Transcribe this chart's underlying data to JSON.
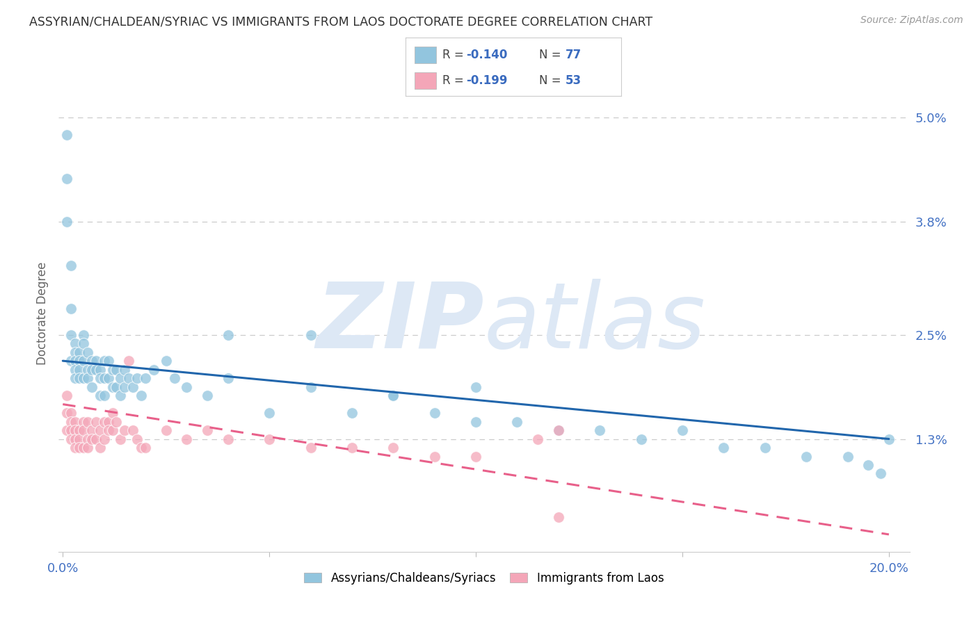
{
  "title": "ASSYRIAN/CHALDEAN/SYRIAC VS IMMIGRANTS FROM LAOS DOCTORATE DEGREE CORRELATION CHART",
  "source": "Source: ZipAtlas.com",
  "ylabel": "Doctorate Degree",
  "yaxis_ticks": [
    "5.0%",
    "3.8%",
    "2.5%",
    "1.3%"
  ],
  "yaxis_vals": [
    0.05,
    0.038,
    0.025,
    0.013
  ],
  "legend_label1": "Assyrians/Chaldeans/Syriacs",
  "legend_label2": "Immigrants from Laos",
  "blue_color": "#92c5de",
  "pink_color": "#f4a6b8",
  "blue_line_color": "#2166ac",
  "pink_line_color": "#e8608a",
  "blue_scatter_x": [
    0.001,
    0.001,
    0.001,
    0.002,
    0.002,
    0.002,
    0.002,
    0.003,
    0.003,
    0.003,
    0.003,
    0.003,
    0.004,
    0.004,
    0.004,
    0.004,
    0.005,
    0.005,
    0.005,
    0.005,
    0.006,
    0.006,
    0.006,
    0.007,
    0.007,
    0.007,
    0.008,
    0.008,
    0.009,
    0.009,
    0.009,
    0.01,
    0.01,
    0.01,
    0.011,
    0.011,
    0.012,
    0.012,
    0.013,
    0.013,
    0.014,
    0.014,
    0.015,
    0.015,
    0.016,
    0.017,
    0.018,
    0.019,
    0.02,
    0.022,
    0.025,
    0.027,
    0.03,
    0.035,
    0.04,
    0.05,
    0.06,
    0.07,
    0.08,
    0.09,
    0.1,
    0.11,
    0.12,
    0.13,
    0.14,
    0.15,
    0.16,
    0.17,
    0.18,
    0.19,
    0.195,
    0.198,
    0.2,
    0.1,
    0.08,
    0.06,
    0.04
  ],
  "blue_scatter_y": [
    0.048,
    0.043,
    0.038,
    0.033,
    0.028,
    0.025,
    0.022,
    0.024,
    0.023,
    0.022,
    0.021,
    0.02,
    0.023,
    0.022,
    0.021,
    0.02,
    0.025,
    0.024,
    0.022,
    0.02,
    0.023,
    0.021,
    0.02,
    0.022,
    0.021,
    0.019,
    0.022,
    0.021,
    0.021,
    0.02,
    0.018,
    0.022,
    0.02,
    0.018,
    0.022,
    0.02,
    0.021,
    0.019,
    0.021,
    0.019,
    0.02,
    0.018,
    0.021,
    0.019,
    0.02,
    0.019,
    0.02,
    0.018,
    0.02,
    0.021,
    0.022,
    0.02,
    0.019,
    0.018,
    0.02,
    0.016,
    0.019,
    0.016,
    0.018,
    0.016,
    0.015,
    0.015,
    0.014,
    0.014,
    0.013,
    0.014,
    0.012,
    0.012,
    0.011,
    0.011,
    0.01,
    0.009,
    0.013,
    0.019,
    0.018,
    0.025,
    0.025
  ],
  "pink_scatter_x": [
    0.001,
    0.001,
    0.001,
    0.002,
    0.002,
    0.002,
    0.002,
    0.003,
    0.003,
    0.003,
    0.003,
    0.004,
    0.004,
    0.004,
    0.005,
    0.005,
    0.005,
    0.006,
    0.006,
    0.006,
    0.007,
    0.007,
    0.008,
    0.008,
    0.009,
    0.009,
    0.01,
    0.01,
    0.011,
    0.011,
    0.012,
    0.012,
    0.013,
    0.014,
    0.015,
    0.016,
    0.017,
    0.018,
    0.019,
    0.02,
    0.025,
    0.03,
    0.035,
    0.04,
    0.05,
    0.06,
    0.07,
    0.08,
    0.09,
    0.1,
    0.115,
    0.12,
    0.12
  ],
  "pink_scatter_y": [
    0.018,
    0.016,
    0.014,
    0.016,
    0.015,
    0.014,
    0.013,
    0.015,
    0.014,
    0.013,
    0.012,
    0.014,
    0.013,
    0.012,
    0.015,
    0.014,
    0.012,
    0.015,
    0.013,
    0.012,
    0.014,
    0.013,
    0.015,
    0.013,
    0.014,
    0.012,
    0.015,
    0.013,
    0.015,
    0.014,
    0.016,
    0.014,
    0.015,
    0.013,
    0.014,
    0.022,
    0.014,
    0.013,
    0.012,
    0.012,
    0.014,
    0.013,
    0.014,
    0.013,
    0.013,
    0.012,
    0.012,
    0.012,
    0.011,
    0.011,
    0.013,
    0.004,
    0.014
  ],
  "blue_line_x": [
    0.0,
    0.2
  ],
  "blue_line_y": [
    0.022,
    0.013
  ],
  "pink_line_x": [
    0.0,
    0.2
  ],
  "pink_line_y": [
    0.017,
    0.002
  ],
  "xlim": [
    -0.001,
    0.205
  ],
  "ylim": [
    0.0,
    0.055
  ],
  "background_color": "#ffffff",
  "watermark_zip": "ZIP",
  "watermark_atlas": "atlas",
  "watermark_color": "#dde8f5"
}
